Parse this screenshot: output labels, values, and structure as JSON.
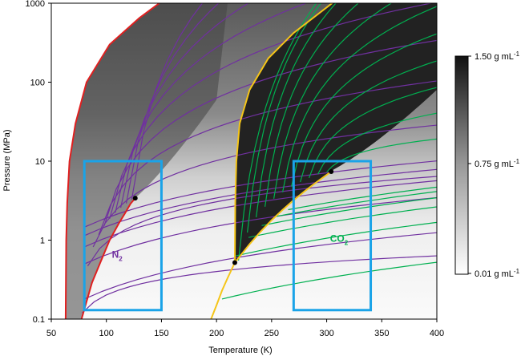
{
  "chart_data": {
    "type": "line",
    "xlabel": "Temperature (K)",
    "ylabel": "Pressure (MPa)",
    "xlim": [
      50,
      400
    ],
    "ylim": [
      0.1,
      1000
    ],
    "yscale": "log",
    "x_ticks": [
      "50",
      "100",
      "150",
      "200",
      "250",
      "300",
      "350",
      "400"
    ],
    "y_ticks": [
      "0.1",
      "1",
      "10",
      "100",
      "1000"
    ],
    "colorbar": {
      "labels": [
        {
          "base": "1.50 g mL",
          "exp": "-1",
          "value": 1.5
        },
        {
          "base": "0.75 g mL",
          "exp": "-1",
          "value": 0.75
        },
        {
          "base": "0.01 g mL",
          "exp": "-1",
          "value": 0.01
        }
      ]
    },
    "background": "density shading (white low density, dark high density)",
    "species": [
      {
        "label": "N",
        "subscript": "2",
        "color": "#7030a0",
        "melting_curve": [
          [
            63,
            0.1
          ],
          [
            63.5,
            1
          ],
          [
            64.5,
            3
          ],
          [
            66.5,
            10
          ],
          [
            72,
            30
          ],
          [
            82,
            100
          ],
          [
            103,
            300
          ],
          [
            130,
            650
          ],
          [
            148,
            1000
          ]
        ],
        "vapor_curve": [
          [
            77.4,
            0.1
          ],
          [
            87,
            0.29
          ],
          [
            95,
            0.54
          ],
          [
            103,
            1.0
          ],
          [
            111,
            1.6
          ],
          [
            117,
            2.2
          ],
          [
            122,
            2.9
          ],
          [
            126.2,
            3.4
          ]
        ],
        "critical_point": [
          126.2,
          3.4
        ],
        "region_box": {
          "tmin": 80,
          "tmax": 150,
          "pmin": 0.13,
          "pmax": 10
        },
        "label_position": [
          105,
          0.6
        ],
        "isochore_starts_T": [
          78,
          83,
          88,
          93,
          98,
          103,
          108,
          113,
          118,
          123
        ]
      },
      {
        "label": "CO",
        "subscript": "2",
        "color": "#00b050",
        "melting_curve": [
          [
            216.6,
            0.52
          ],
          [
            217,
            3
          ],
          [
            218,
            10
          ],
          [
            221,
            30
          ],
          [
            230,
            80
          ],
          [
            247,
            200
          ],
          [
            270,
            420
          ],
          [
            305,
            1000
          ]
        ],
        "sublimation_curve": [
          [
            195,
            0.1
          ],
          [
            200,
            0.15
          ],
          [
            205,
            0.23
          ],
          [
            210,
            0.33
          ],
          [
            216.6,
            0.52
          ]
        ],
        "vapor_curve": [
          [
            216.6,
            0.52
          ],
          [
            230,
            0.89
          ],
          [
            240,
            1.28
          ],
          [
            250,
            1.79
          ],
          [
            260,
            2.42
          ],
          [
            270,
            3.2
          ],
          [
            280,
            4.16
          ],
          [
            290,
            5.32
          ],
          [
            298,
            6.4
          ],
          [
            304.1,
            7.38
          ]
        ],
        "critical_point": [
          304.1,
          7.38
        ],
        "triple_point": [
          216.6,
          0.52
        ],
        "region_box": {
          "tmin": 270,
          "tmax": 340,
          "pmin": 0.13,
          "pmax": 10
        },
        "label_position": [
          303,
          0.95
        ],
        "isochore_starts_T": [
          220,
          228,
          236,
          244,
          252,
          260,
          268,
          276,
          284,
          292,
          300
        ]
      }
    ],
    "colors": {
      "N2_melting": "#e02020",
      "CO2_melting": "#f5c518",
      "box": "#1aa3e8",
      "critical_point": "#000000"
    }
  }
}
